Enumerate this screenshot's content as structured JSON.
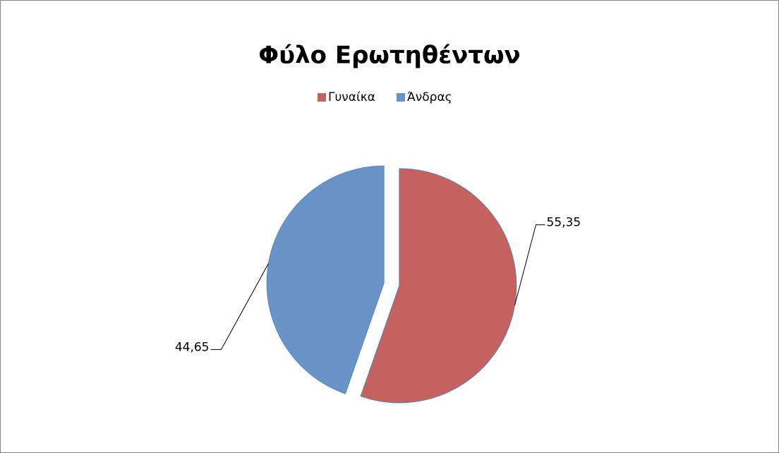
{
  "chart_data": {
    "type": "pie",
    "title": "Φύλο Ερωτηθέντων",
    "categories": [
      "Γυναίκα",
      "Άνδρας"
    ],
    "values": [
      55.35,
      44.65
    ],
    "value_labels": [
      "55,35",
      "44,65"
    ],
    "colors": [
      "#c5625f",
      "#6894c8"
    ],
    "legend": "top"
  }
}
